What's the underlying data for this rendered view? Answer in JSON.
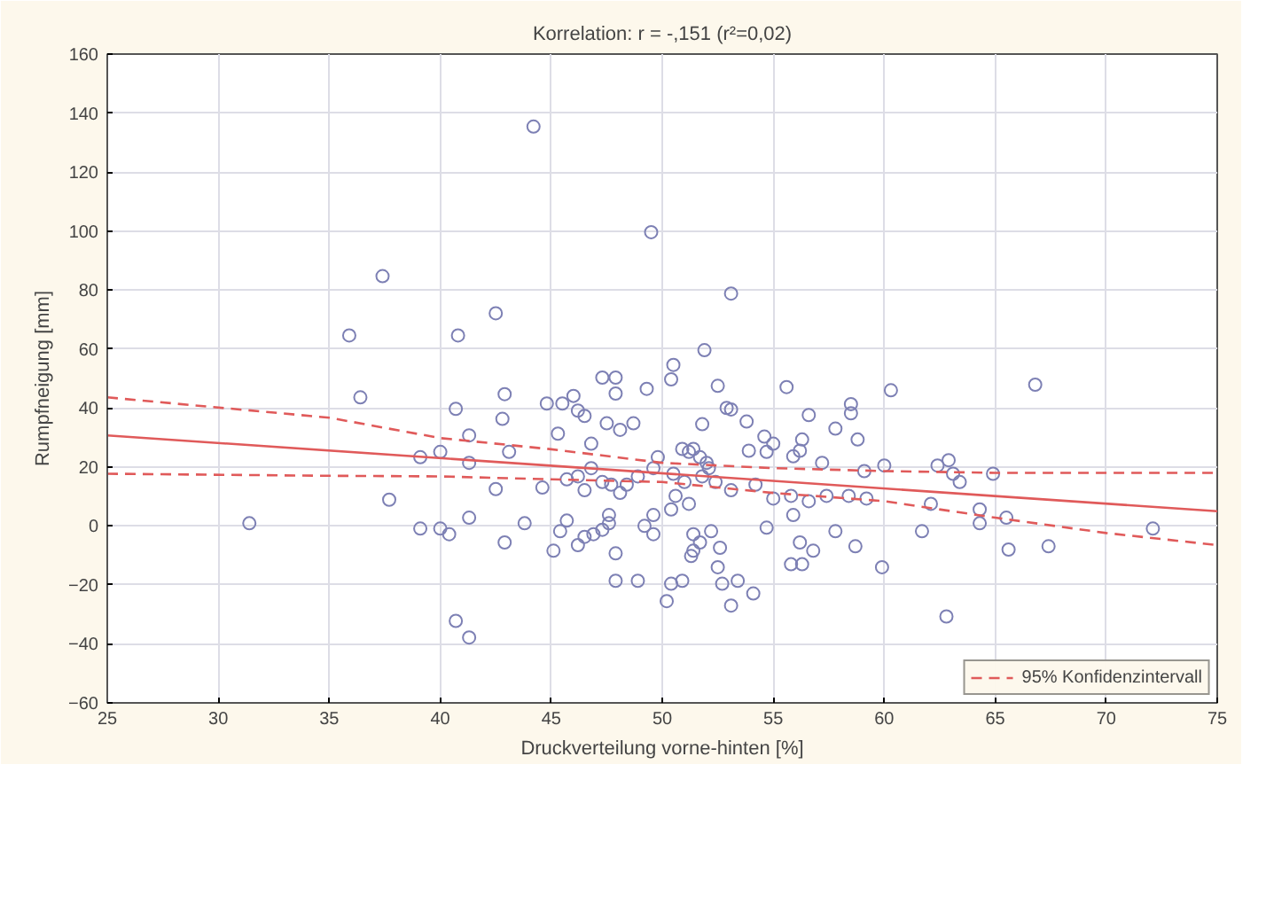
{
  "chart_data": {
    "type": "scatter",
    "title": "Korrelation: r = -,151 (r²=0,02)",
    "xlabel": "Druckverteilung vorne-hinten [%]",
    "ylabel": "Rumpfneigung [mm]",
    "xlim": [
      25,
      75
    ],
    "ylim": [
      -60,
      160
    ],
    "xticks": [
      25,
      30,
      35,
      40,
      45,
      50,
      55,
      60,
      65,
      70,
      75
    ],
    "yticks": [
      -60,
      -40,
      -20,
      0,
      20,
      40,
      60,
      80,
      100,
      120,
      140,
      160
    ],
    "grid": true,
    "legend": "bottom right",
    "marker": "circle",
    "series": [
      {
        "color": "#7d80b4",
        "x": [
          36.4,
          42.9,
          40.7,
          42.8,
          45.3,
          44.8,
          45.5,
          46.0,
          46.2,
          46.5,
          47.9,
          49.3,
          46.8,
          47.5,
          48.1,
          48.7,
          39.1,
          40.0,
          41.3,
          41.3,
          42.5,
          43.1,
          44.6,
          45.7,
          46.2,
          46.5,
          46.8,
          47.3,
          47.7,
          48.1,
          48.4,
          48.9,
          37.7,
          31.4,
          39.1,
          40.0,
          40.4,
          41.3,
          42.9,
          43.8,
          45.1,
          45.4,
          45.7,
          46.2,
          46.5,
          46.9,
          47.3,
          47.6,
          47.6,
          47.9,
          47.9,
          48.9,
          49.2,
          49.6,
          49.6,
          40.7,
          41.3,
          44.2,
          49.5,
          37.4,
          42.5,
          35.9,
          40.8,
          47.3,
          47.9,
          53.1,
          51.9,
          50.5,
          50.4,
          52.5,
          55.6,
          60.3,
          66.8,
          52.9,
          53.1,
          56.6,
          58.5,
          58.5,
          53.8,
          57.8,
          58.8,
          51.8,
          54.6,
          55.0,
          54.7,
          56.3,
          56.2,
          55.9,
          53.9,
          50.9,
          51.2,
          51.4,
          51.7,
          52.0,
          52.1,
          49.8,
          49.6,
          57.2,
          59.1,
          60.0,
          62.4,
          62.9,
          63.1,
          63.4,
          64.9,
          50.5,
          51.0,
          51.8,
          52.4,
          53.1,
          54.2,
          55.0,
          55.8,
          56.6,
          57.4,
          58.4,
          59.2,
          62.1,
          50.4,
          51.2,
          50.6,
          55.9,
          54.7,
          51.4,
          51.7,
          51.4,
          51.3,
          52.2,
          52.6,
          52.5,
          56.2,
          56.8,
          57.8,
          58.7,
          55.8,
          56.3,
          59.9,
          61.7,
          64.3,
          64.3,
          65.5,
          65.6,
          67.4,
          72.1,
          50.4,
          50.9,
          50.2,
          52.7,
          53.4,
          54.1,
          53.1,
          62.8
        ],
        "values": [
          43.6,
          44.7,
          39.7,
          36.3,
          31.3,
          41.5,
          41.5,
          44.1,
          39.1,
          37.3,
          44.9,
          46.5,
          27.9,
          34.8,
          32.6,
          34.8,
          23.3,
          25.1,
          30.7,
          21.4,
          12.5,
          25.1,
          13.0,
          15.8,
          16.8,
          12.1,
          19.6,
          14.9,
          14.0,
          11.2,
          14.0,
          16.8,
          8.9,
          0.9,
          -0.9,
          -0.9,
          -2.8,
          2.8,
          -5.6,
          0.9,
          -8.4,
          -1.8,
          1.8,
          -6.5,
          -3.7,
          -2.8,
          -1.3,
          3.7,
          0.9,
          -9.3,
          -18.6,
          -18.6,
          0,
          -2.8,
          3.7,
          -32.2,
          -37.8,
          135.4,
          99.6,
          84.7,
          72.1,
          64.6,
          64.6,
          50.3,
          50.3,
          78.8,
          59.6,
          54.6,
          49.7,
          47.5,
          47.1,
          46.0,
          47.9,
          40.0,
          39.5,
          37.6,
          41.3,
          38.2,
          35.4,
          33.0,
          29.3,
          34.5,
          30.3,
          27.9,
          25.1,
          29.3,
          25.5,
          23.6,
          25.5,
          26.1,
          25.1,
          26.1,
          23.3,
          21.4,
          19.6,
          23.3,
          19.6,
          21.4,
          18.6,
          20.5,
          20.5,
          22.3,
          17.7,
          14.9,
          17.7,
          17.7,
          14.9,
          16.8,
          14.9,
          12.1,
          14.0,
          9.3,
          10.2,
          8.4,
          10.2,
          10.2,
          9.3,
          7.5,
          5.6,
          7.5,
          10.2,
          3.7,
          -0.6,
          -2.8,
          -5.6,
          -8.4,
          -10.2,
          -1.8,
          -7.4,
          -14.0,
          -5.6,
          -8.4,
          -1.8,
          -6.9,
          -13.0,
          -13.0,
          -14.0,
          -1.8,
          5.6,
          0.9,
          2.8,
          -8.0,
          -6.9,
          -0.9,
          -19.6,
          -18.6,
          -25.5,
          -19.6,
          -18.6,
          -22.9,
          -27.0,
          -30.7
        ]
      },
      {
        "type": "line",
        "color": "#e05a5a",
        "marker": "none",
        "line_style": "solid",
        "x": [
          25,
          75
        ],
        "values": [
          30.7,
          5.0
        ]
      },
      {
        "type": "line",
        "name": "95% Konfidenzintervall",
        "color": "#e05a5a",
        "marker": "none",
        "line_style": "dashed",
        "x": [
          25,
          35,
          40,
          45,
          50,
          55,
          60,
          65,
          70,
          75
        ],
        "values": [
          43.6,
          36.7,
          29.8,
          26.0,
          21.4,
          19.6,
          18.6,
          18.0,
          18.0,
          18.0
        ]
      },
      {
        "type": "line",
        "color": "#e05a5a",
        "marker": "none",
        "line_style": "dashed",
        "x": [
          25,
          35,
          40,
          45,
          50,
          55,
          60,
          65,
          70,
          75
        ],
        "values": [
          17.7,
          17.0,
          16.8,
          15.8,
          14.9,
          11.2,
          8.4,
          2.8,
          -2.4,
          -6.5
        ]
      }
    ]
  }
}
